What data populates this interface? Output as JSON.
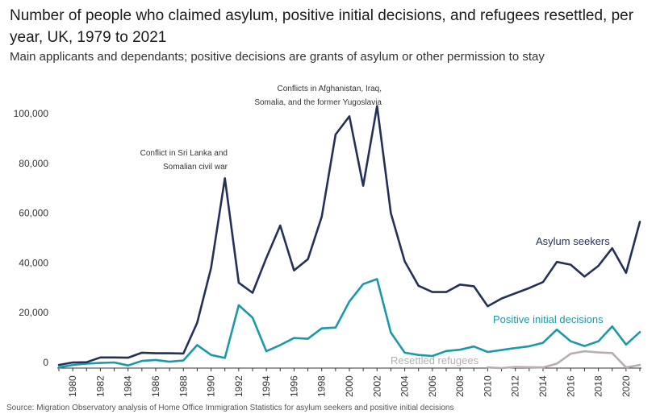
{
  "title": "Number of people who claimed asylum, positive initial decisions, and refugees resettled, per year, UK, 1979 to 2021",
  "subtitle": "Main applicants and dependants; positive decisions are grants of asylum or other permission to stay",
  "source": "Source: Migration Observatory analysis of Home Office Immigration Statistics for asylum seekers and positive initial decisions",
  "colors": {
    "asylum": "#233158",
    "positive": "#1b98a9",
    "resettled": "#b8aeae",
    "axis": "#333333"
  },
  "chart_data": {
    "type": "line",
    "title": "Number of people who claimed asylum, positive initial decisions, and refugees resettled, per year, UK, 1979 to 2021",
    "xlabel": "",
    "ylabel": "",
    "xlim": [
      1979,
      2021
    ],
    "ylim": [
      -2000,
      110000
    ],
    "grid": false,
    "y_ticks": [
      0,
      20000,
      40000,
      60000,
      80000,
      100000
    ],
    "y_tick_labels": [
      "0",
      "20,000",
      "40,000",
      "60,000",
      "80,000",
      "100,000"
    ],
    "x_tick_labels": [
      "1980",
      "1982",
      "1984",
      "1986",
      "1988",
      "1990",
      "1992",
      "1994",
      "1996",
      "1998",
      "2000",
      "2002",
      "2004",
      "2006",
      "2008",
      "2010",
      "2012",
      "2014",
      "2016",
      "2018",
      "2020"
    ],
    "series": [
      {
        "name": "Asylum seekers",
        "color": "#233158",
        "x": [
          1979,
          1980,
          1981,
          1982,
          1983,
          1984,
          1985,
          1986,
          1987,
          1988,
          1989,
          1990,
          1991,
          1992,
          1993,
          1994,
          1995,
          1996,
          1997,
          1998,
          1999,
          2000,
          2001,
          2002,
          2003,
          2004,
          2005,
          2006,
          2007,
          2008,
          2009,
          2010,
          2011,
          2012,
          2013,
          2014,
          2015,
          2016,
          2017,
          2018,
          2019,
          2020,
          2021
        ],
        "values": [
          -1000,
          0,
          100,
          2000,
          2000,
          1900,
          3900,
          3700,
          3700,
          3600,
          16000,
          38000,
          74000,
          32000,
          28000,
          42000,
          55000,
          37000,
          41500,
          58500,
          91600,
          98900,
          71000,
          103000,
          60000,
          40600,
          30800,
          28300,
          28300,
          31300,
          30600,
          22600,
          25700,
          27800,
          29900,
          32300,
          40400,
          39300,
          34500,
          38800,
          45900,
          36000,
          56500
        ]
      },
      {
        "name": "Positive initial decisions",
        "color": "#1b98a9",
        "x": [
          1979,
          1980,
          1981,
          1982,
          1983,
          1984,
          1985,
          1986,
          1987,
          1988,
          1989,
          1990,
          1991,
          1992,
          1993,
          1994,
          1995,
          1996,
          1997,
          1998,
          1999,
          2000,
          2001,
          2002,
          2003,
          2004,
          2005,
          2006,
          2007,
          2008,
          2009,
          2010,
          2011,
          2012,
          2013,
          2014,
          2015,
          2016,
          2017,
          2018,
          2019,
          2020,
          2021
        ],
        "values": [
          -2000,
          -1000,
          -500,
          -200,
          0,
          -1200,
          600,
          1000,
          300,
          800,
          7000,
          3000,
          1800,
          23000,
          18000,
          4500,
          7000,
          9800,
          9500,
          13700,
          14000,
          24500,
          31500,
          33500,
          12000,
          3900,
          3000,
          2600,
          4600,
          5100,
          6400,
          4200,
          5000,
          5800,
          6500,
          7900,
          13200,
          8500,
          6600,
          8500,
          14500,
          7200,
          12200
        ]
      },
      {
        "name": "Resettled refugees",
        "color": "#b8aeae",
        "x": [
          2010,
          2011,
          2012,
          2013,
          2014,
          2015,
          2016,
          2017,
          2018,
          2019,
          2020,
          2021
        ],
        "values": [
          -2000,
          -2300,
          -1800,
          -1900,
          -2000,
          -500,
          3500,
          4500,
          4000,
          3800,
          -2000,
          -1000
        ]
      }
    ],
    "series_labels": [
      "Asylum seekers",
      "Positive initial decisions",
      "Resettled refugees"
    ],
    "annotations": [
      {
        "lines": [
          "Conflict in Sri Lanka and",
          "Somalian civil war"
        ],
        "x": 1991.2
      },
      {
        "lines": [
          "Conflicts in Afghanistan, Iraq,",
          "Somalia, and the former Yugoslavia"
        ],
        "x": 2002.4
      }
    ]
  }
}
